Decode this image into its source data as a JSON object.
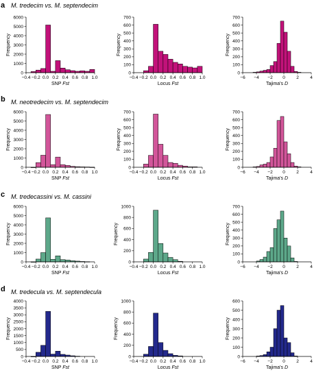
{
  "rows": [
    {
      "letter": "a",
      "title": "M. tredecim vs. M. septendecim",
      "color": "#c2127a"
    },
    {
      "letter": "b",
      "title": "M. neotredecim vs. M. septendecim",
      "color": "#d2569a"
    },
    {
      "letter": "c",
      "title": "M. tredecassini vs. M. cassini",
      "color": "#5da88a"
    },
    {
      "letter": "d",
      "title": "M. tredecula vs. M. septendecula",
      "color": "#23298c"
    }
  ],
  "ylabel": "Frequency",
  "xlabels": [
    "SNP Fst",
    "Locus Fst",
    "Tajima's D"
  ],
  "chart_data": [
    {
      "type": "bar",
      "panel": "a-snp",
      "title": "M. tredecim vs. M. septendecim",
      "xlabel": "SNP Fst",
      "ylabel": "Frequency",
      "xlim": [
        -0.4,
        1.0
      ],
      "xticks": [
        -0.4,
        -0.2,
        0.0,
        0.2,
        0.4,
        0.6,
        0.8,
        1.0
      ],
      "ylim": [
        0,
        6000
      ],
      "yticks": [
        0,
        1000,
        2000,
        3000,
        4000,
        5000,
        6000
      ],
      "bins": [
        [
          -0.3,
          -0.2
        ],
        [
          -0.2,
          -0.1
        ],
        [
          -0.1,
          0.0
        ],
        [
          0.0,
          0.1
        ],
        [
          0.1,
          0.2
        ],
        [
          0.2,
          0.3
        ],
        [
          0.3,
          0.4
        ],
        [
          0.4,
          0.5
        ],
        [
          0.5,
          0.6
        ],
        [
          0.6,
          0.7
        ],
        [
          0.7,
          0.8
        ],
        [
          0.8,
          0.9
        ],
        [
          0.9,
          1.0
        ]
      ],
      "values": [
        120,
        280,
        450,
        5150,
        150,
        1300,
        500,
        320,
        220,
        150,
        200,
        150,
        350
      ]
    },
    {
      "type": "bar",
      "panel": "a-locus",
      "xlabel": "Locus Fst",
      "ylabel": "Frequency",
      "xlim": [
        -0.4,
        1.0
      ],
      "xticks": [
        -0.4,
        -0.2,
        0.0,
        0.2,
        0.4,
        0.6,
        0.8,
        1.0
      ],
      "ylim": [
        0,
        700
      ],
      "yticks": [
        0,
        100,
        200,
        300,
        400,
        500,
        600,
        700
      ],
      "bins": [
        [
          -0.2,
          -0.1
        ],
        [
          -0.1,
          0.0
        ],
        [
          0.0,
          0.1
        ],
        [
          0.1,
          0.2
        ],
        [
          0.2,
          0.3
        ],
        [
          0.3,
          0.4
        ],
        [
          0.4,
          0.5
        ],
        [
          0.5,
          0.6
        ],
        [
          0.6,
          0.7
        ],
        [
          0.7,
          0.8
        ],
        [
          0.8,
          0.9
        ],
        [
          0.9,
          1.0
        ]
      ],
      "values": [
        25,
        80,
        610,
        270,
        230,
        170,
        130,
        110,
        80,
        70,
        60,
        80
      ]
    },
    {
      "type": "bar",
      "panel": "a-tajima",
      "xlabel": "Tajima's D",
      "ylabel": "Frequency",
      "xlim": [
        -6,
        4
      ],
      "xticks": [
        -6,
        -4,
        -2,
        0,
        2,
        4
      ],
      "ylim": [
        0,
        700
      ],
      "yticks": [
        0,
        100,
        200,
        300,
        400,
        500,
        600,
        700
      ],
      "bins": [
        [
          -4.5,
          -4
        ],
        [
          -4,
          -3.5
        ],
        [
          -3.5,
          -3
        ],
        [
          -3,
          -2.5
        ],
        [
          -2.5,
          -2
        ],
        [
          -2,
          -1.5
        ],
        [
          -1.5,
          -1
        ],
        [
          -1,
          -0.5
        ],
        [
          -0.5,
          0
        ],
        [
          0,
          0.5
        ],
        [
          0.5,
          1
        ],
        [
          1,
          1.5
        ],
        [
          1.5,
          2
        ],
        [
          2,
          2.5
        ]
      ],
      "values": [
        5,
        10,
        20,
        30,
        40,
        90,
        140,
        370,
        650,
        510,
        270,
        80,
        15,
        5
      ]
    },
    {
      "type": "bar",
      "panel": "b-snp",
      "title": "M. neotredecim vs. M. septendecim",
      "xlabel": "SNP Fst",
      "ylabel": "Frequency",
      "xlim": [
        -0.4,
        1.0
      ],
      "xticks": [
        -0.4,
        -0.2,
        0.0,
        0.2,
        0.4,
        0.6,
        0.8,
        1.0
      ],
      "ylim": [
        0,
        6000
      ],
      "yticks": [
        0,
        1000,
        2000,
        3000,
        4000,
        5000,
        6000
      ],
      "bins": [
        [
          -0.3,
          -0.2
        ],
        [
          -0.2,
          -0.1
        ],
        [
          -0.1,
          0.0
        ],
        [
          0.0,
          0.1
        ],
        [
          0.1,
          0.2
        ],
        [
          0.2,
          0.3
        ],
        [
          0.3,
          0.4
        ],
        [
          0.4,
          0.5
        ],
        [
          0.5,
          0.6
        ],
        [
          0.6,
          0.7
        ],
        [
          0.7,
          0.8
        ],
        [
          0.8,
          0.9
        ],
        [
          0.9,
          1.0
        ]
      ],
      "values": [
        0,
        500,
        1300,
        5700,
        280,
        1100,
        280,
        200,
        100,
        60,
        40,
        30,
        10
      ]
    },
    {
      "type": "bar",
      "panel": "b-locus",
      "xlabel": "Locus Fst",
      "ylabel": "Frequency",
      "xlim": [
        -0.4,
        1.0
      ],
      "xticks": [
        -0.4,
        -0.2,
        0.0,
        0.2,
        0.4,
        0.6,
        0.8,
        1.0
      ],
      "ylim": [
        0,
        700
      ],
      "yticks": [
        0,
        100,
        200,
        300,
        400,
        500,
        600,
        700
      ],
      "bins": [
        [
          -0.2,
          -0.1
        ],
        [
          -0.1,
          0.0
        ],
        [
          0.0,
          0.1
        ],
        [
          0.1,
          0.2
        ],
        [
          0.2,
          0.3
        ],
        [
          0.3,
          0.4
        ],
        [
          0.4,
          0.5
        ],
        [
          0.5,
          0.6
        ],
        [
          0.6,
          0.7
        ],
        [
          0.7,
          0.8
        ],
        [
          0.8,
          0.9
        ]
      ],
      "values": [
        40,
        150,
        670,
        290,
        150,
        60,
        50,
        25,
        15,
        5,
        5
      ]
    },
    {
      "type": "bar",
      "panel": "b-tajima",
      "xlabel": "Tajima's D",
      "ylabel": "Frequency",
      "xlim": [
        -6,
        4
      ],
      "xticks": [
        -6,
        -4,
        -2,
        0,
        2,
        4
      ],
      "ylim": [
        0,
        700
      ],
      "yticks": [
        0,
        100,
        200,
        300,
        400,
        500,
        600,
        700
      ],
      "bins": [
        [
          -4.5,
          -4
        ],
        [
          -4,
          -3.5
        ],
        [
          -3.5,
          -3
        ],
        [
          -3,
          -2.5
        ],
        [
          -2.5,
          -2
        ],
        [
          -2,
          -1.5
        ],
        [
          -1.5,
          -1
        ],
        [
          -1,
          -0.5
        ],
        [
          -0.5,
          0
        ],
        [
          0,
          0.5
        ],
        [
          0.5,
          1
        ],
        [
          1,
          1.5
        ],
        [
          1.5,
          2
        ],
        [
          2,
          2.5
        ]
      ],
      "values": [
        5,
        10,
        30,
        40,
        60,
        130,
        240,
        590,
        640,
        320,
        170,
        60,
        15,
        5
      ]
    },
    {
      "type": "bar",
      "panel": "c-snp",
      "title": "M. tredecassini vs. M. cassini",
      "xlabel": "SNP Fst",
      "ylabel": "Frequency",
      "xlim": [
        -0.4,
        1.0
      ],
      "xticks": [
        -0.4,
        -0.2,
        0.0,
        0.2,
        0.4,
        0.6,
        0.8,
        1.0
      ],
      "ylim": [
        0,
        6000
      ],
      "yticks": [
        0,
        1000,
        2000,
        3000,
        4000,
        5000,
        6000
      ],
      "bins": [
        [
          -0.3,
          -0.2
        ],
        [
          -0.2,
          -0.1
        ],
        [
          -0.1,
          0.0
        ],
        [
          0.0,
          0.1
        ],
        [
          0.1,
          0.2
        ],
        [
          0.2,
          0.3
        ],
        [
          0.3,
          0.4
        ],
        [
          0.4,
          0.5
        ],
        [
          0.5,
          0.6
        ],
        [
          0.6,
          0.7
        ],
        [
          0.7,
          0.8
        ],
        [
          0.8,
          0.9
        ]
      ],
      "values": [
        0,
        300,
        1000,
        4750,
        280,
        650,
        240,
        200,
        120,
        80,
        40,
        20
      ]
    },
    {
      "type": "bar",
      "panel": "c-locus",
      "xlabel": "Locus Fst",
      "ylabel": "Frequency",
      "xlim": [
        -0.4,
        1.0
      ],
      "xticks": [
        -0.4,
        -0.2,
        0.0,
        0.2,
        0.4,
        0.6,
        0.8,
        1.0
      ],
      "ylim": [
        0,
        1000
      ],
      "yticks": [
        0,
        200,
        400,
        600,
        800,
        1000
      ],
      "bins": [
        [
          -0.2,
          -0.1
        ],
        [
          -0.1,
          0.0
        ],
        [
          0.0,
          0.1
        ],
        [
          0.1,
          0.2
        ],
        [
          0.2,
          0.3
        ],
        [
          0.3,
          0.4
        ],
        [
          0.4,
          0.5
        ],
        [
          0.5,
          0.6
        ]
      ],
      "values": [
        50,
        170,
        930,
        330,
        160,
        80,
        40,
        10
      ]
    },
    {
      "type": "bar",
      "panel": "c-tajima",
      "xlabel": "Tajima's D",
      "ylabel": "Frequency",
      "xlim": [
        -6,
        4
      ],
      "xticks": [
        -6,
        -4,
        -2,
        0,
        2,
        4
      ],
      "ylim": [
        0,
        700
      ],
      "yticks": [
        0,
        100,
        200,
        300,
        400,
        500,
        600,
        700
      ],
      "bins": [
        [
          -4,
          -3.5
        ],
        [
          -3.5,
          -3
        ],
        [
          -3,
          -2.5
        ],
        [
          -2.5,
          -2
        ],
        [
          -2,
          -1.5
        ],
        [
          -1.5,
          -1
        ],
        [
          -1,
          -0.5
        ],
        [
          -0.5,
          0
        ],
        [
          0,
          0.5
        ],
        [
          0.5,
          1
        ],
        [
          1,
          1.5
        ],
        [
          1.5,
          2
        ]
      ],
      "values": [
        10,
        30,
        60,
        130,
        180,
        420,
        530,
        640,
        300,
        200,
        50,
        5
      ]
    },
    {
      "type": "bar",
      "panel": "d-snp",
      "title": "M. tredecula vs. M. septendecula",
      "xlabel": "SNP Fst",
      "ylabel": "Frequency",
      "xlim": [
        -0.4,
        1.0
      ],
      "xticks": [
        -0.4,
        -0.2,
        0.0,
        0.2,
        0.4,
        0.6,
        0.8,
        1.0
      ],
      "ylim": [
        0,
        4000
      ],
      "yticks": [
        0,
        500,
        1000,
        1500,
        2000,
        2500,
        3000,
        3500,
        4000
      ],
      "bins": [
        [
          -0.3,
          -0.2
        ],
        [
          -0.2,
          -0.1
        ],
        [
          -0.1,
          0.0
        ],
        [
          0.0,
          0.1
        ],
        [
          0.1,
          0.2
        ],
        [
          0.2,
          0.3
        ],
        [
          0.3,
          0.4
        ],
        [
          0.4,
          0.5
        ],
        [
          0.5,
          0.6
        ],
        [
          0.6,
          0.7
        ]
      ],
      "values": [
        0,
        300,
        800,
        3250,
        170,
        380,
        150,
        100,
        50,
        20
      ]
    },
    {
      "type": "bar",
      "panel": "d-locus",
      "xlabel": "Locus Fst",
      "ylabel": "Frequency",
      "xlim": [
        -0.4,
        1.0
      ],
      "xticks": [
        -0.4,
        -0.2,
        0.0,
        0.2,
        0.4,
        0.6,
        0.8,
        1.0
      ],
      "ylim": [
        0,
        1000
      ],
      "yticks": [
        0,
        200,
        400,
        600,
        800,
        1000
      ],
      "bins": [
        [
          -0.2,
          -0.1
        ],
        [
          -0.1,
          0.0
        ],
        [
          0.0,
          0.1
        ],
        [
          0.1,
          0.2
        ],
        [
          0.2,
          0.3
        ],
        [
          0.3,
          0.4
        ],
        [
          0.4,
          0.5
        ],
        [
          0.5,
          0.6
        ]
      ],
      "values": [
        40,
        180,
        780,
        250,
        110,
        50,
        20,
        10
      ]
    },
    {
      "type": "bar",
      "panel": "d-tajima",
      "xlabel": "Tajima's D",
      "ylabel": "Frequency",
      "xlim": [
        -6,
        4
      ],
      "xticks": [
        -6,
        -4,
        -2,
        0,
        2,
        4
      ],
      "ylim": [
        0,
        600
      ],
      "yticks": [
        0,
        100,
        200,
        300,
        400,
        500,
        600
      ],
      "bins": [
        [
          -4,
          -3.5
        ],
        [
          -3.5,
          -3
        ],
        [
          -3,
          -2.5
        ],
        [
          -2.5,
          -2
        ],
        [
          -2,
          -1.5
        ],
        [
          -1.5,
          -1
        ],
        [
          -1,
          -0.5
        ],
        [
          -0.5,
          0
        ],
        [
          0,
          0.5
        ],
        [
          0.5,
          1
        ],
        [
          1,
          1.5
        ],
        [
          1.5,
          2
        ]
      ],
      "values": [
        5,
        10,
        20,
        50,
        100,
        300,
        500,
        550,
        200,
        150,
        40,
        5
      ]
    }
  ]
}
